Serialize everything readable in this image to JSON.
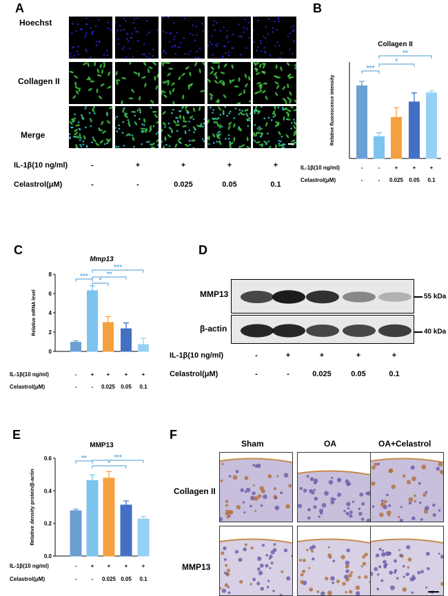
{
  "panels": {
    "A": {
      "letter": "A",
      "rows": [
        "Hoechst",
        "Collagen II",
        "Merge"
      ],
      "il1b_label": "IL-1β(10 ng/ml)",
      "il1b": [
        "-",
        "+",
        "+",
        "+",
        "+"
      ],
      "celastrol_label": "Celastrol(μM)",
      "celastrol": [
        "-",
        "-",
        "0.025",
        "0.05",
        "0.1"
      ]
    },
    "B": {
      "letter": "B",
      "il1b_label": "IL-1β(10 ng/ml)",
      "il1b": [
        "-",
        "-",
        "+",
        "+",
        "+"
      ],
      "celastrol_label": "Celastrol(μM)",
      "celastrol": [
        "-",
        "-",
        "0.025",
        "0.05",
        "0.1"
      ]
    },
    "C": {
      "letter": "C",
      "il1b_label": "IL-1β(10 ng/ml)",
      "il1b": [
        "-",
        "+",
        "+",
        "+",
        "+"
      ],
      "celastrol_label": "Celastrol(μM)",
      "celastrol": [
        "-",
        "-",
        "0.025",
        "0.05",
        "0.1"
      ]
    },
    "D": {
      "letter": "D",
      "bands": [
        "MMP13",
        "β-actin"
      ],
      "markers": [
        "55 kDa",
        "40 kDa"
      ],
      "il1b_label": "IL-1β(10 ng/ml)",
      "il1b": [
        "-",
        "+",
        "+",
        "+",
        "+"
      ],
      "celastrol_label": "Celastrol(μM)",
      "celastrol": [
        "-",
        "-",
        "0.025",
        "0.05",
        "0.1"
      ]
    },
    "E": {
      "letter": "E",
      "il1b_label": "IL-1β(10 ng/ml)",
      "il1b": [
        "-",
        "+",
        "+",
        "+",
        "+"
      ],
      "celastrol_label": "Celastrol(μM)",
      "celastrol": [
        "-",
        "-",
        "0.025",
        "0.05",
        "0.1"
      ]
    },
    "F": {
      "letter": "F",
      "columns": [
        "Sham",
        "OA",
        "OA+Celastrol"
      ],
      "rows": [
        "Collagen II",
        "MMP13"
      ]
    }
  },
  "chart_data": [
    {
      "id": "B",
      "type": "bar",
      "title": "Collagen II",
      "ylabel": "Relative fluorescence intensity",
      "ylim": [
        0,
        1.5
      ],
      "ticks": [],
      "values": [
        1.13,
        0.34,
        0.64,
        0.88,
        1.02
      ],
      "errors": [
        0.07,
        0.06,
        0.15,
        0.14,
        0.03
      ],
      "colors": [
        "#6a9fd3",
        "#7cc3ee",
        "#f5a040",
        "#4470c4",
        "#96d0f5"
      ],
      "significance": [
        "***",
        "*",
        "**"
      ]
    },
    {
      "id": "C",
      "type": "bar",
      "title": "Mmp13",
      "ylabel": "Relative mRNA level",
      "ylim": [
        0,
        8
      ],
      "ticks": [
        "0",
        "2",
        "4",
        "6",
        "8"
      ],
      "values": [
        0.95,
        6.3,
        3.0,
        2.35,
        0.7
      ],
      "errors": [
        0.15,
        0.5,
        0.6,
        0.6,
        0.65
      ],
      "colors": [
        "#6a9fd3",
        "#7cc3ee",
        "#f5a040",
        "#4470c4",
        "#96d0f5"
      ],
      "significance": [
        "***",
        "*",
        "**",
        "***"
      ]
    },
    {
      "id": "E",
      "type": "bar",
      "title": "MMP13",
      "ylabel": "Relative density protein/β-actin",
      "ylim": [
        0,
        0.6
      ],
      "ticks": [
        "0.0",
        "0.2",
        "0.4",
        "0.6"
      ],
      "values": [
        0.278,
        0.463,
        0.478,
        0.313,
        0.228
      ],
      "errors": [
        0.01,
        0.035,
        0.04,
        0.025,
        0.015
      ],
      "colors": [
        "#6a9fd3",
        "#7cc3ee",
        "#f5a040",
        "#4470c4",
        "#96d0f5"
      ],
      "significance": [
        "**",
        "***",
        "*"
      ]
    }
  ]
}
